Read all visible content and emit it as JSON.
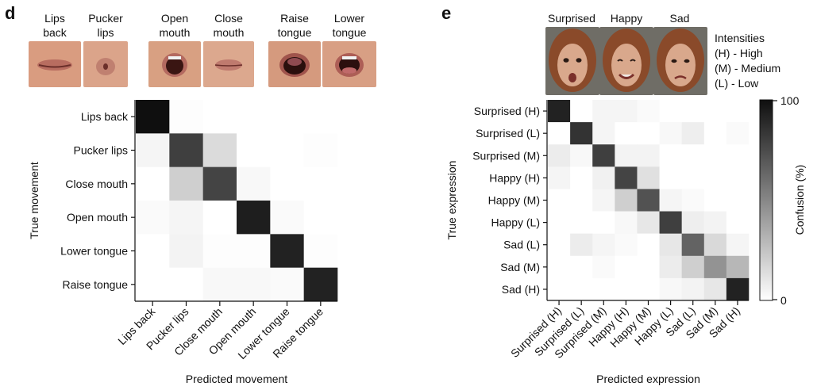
{
  "panel_d": {
    "letter": "d",
    "photo_labels": [
      {
        "line1": "Lips",
        "line2": "back"
      },
      {
        "line1": "Pucker",
        "line2": "lips"
      },
      {
        "line1": "Open",
        "line2": "mouth"
      },
      {
        "line1": "Close",
        "line2": "mouth"
      },
      {
        "line1": "Raise",
        "line2": "tongue"
      },
      {
        "line1": "Lower",
        "line2": "tongue"
      }
    ]
  },
  "panel_e": {
    "letter": "e",
    "photo_labels": [
      "Surprised",
      "Happy",
      "Sad"
    ],
    "intensities_title": "Intensities",
    "intensities": [
      "(H) - High",
      "(M) - Medium",
      "(L) - Low"
    ]
  },
  "chart_data": [
    {
      "type": "heatmap",
      "title": "",
      "xlabel": "Predicted movement",
      "ylabel": "True movement",
      "rows": [
        "Lips back",
        "Pucker lips",
        "Close mouth",
        "Open mouth",
        "Lower tongue",
        "Raise tongue"
      ],
      "columns": [
        "Lips back",
        "Pucker lips",
        "Close mouth",
        "Open mouth",
        "Lower tongue",
        "Raise tongue"
      ],
      "values": [
        [
          100,
          1,
          0,
          0,
          0,
          0
        ],
        [
          4,
          80,
          15,
          0,
          0,
          1
        ],
        [
          0,
          20,
          78,
          3,
          0,
          0
        ],
        [
          2,
          4,
          0,
          94,
          2,
          0
        ],
        [
          0,
          5,
          1,
          1,
          92,
          1
        ],
        [
          0,
          0,
          3,
          3,
          2,
          92
        ]
      ],
      "scale": [
        0,
        100
      ]
    },
    {
      "type": "heatmap",
      "title": "",
      "xlabel": "Predicted expression",
      "ylabel": "True expression",
      "rows": [
        "Surprised (H)",
        "Surprised (L)",
        "Surprised (M)",
        "Happy (H)",
        "Happy (M)",
        "Happy (L)",
        "Sad (L)",
        "Sad (M)",
        "Sad (H)"
      ],
      "columns": [
        "Surprised (H)",
        "Surprised (L)",
        "Surprised (M)",
        "Happy (H)",
        "Happy (M)",
        "Happy (L)",
        "Sad (L)",
        "Sad (M)",
        "Sad (H)"
      ],
      "values": [
        [
          92,
          0,
          4,
          4,
          2,
          0,
          0,
          0,
          0
        ],
        [
          0,
          85,
          4,
          0,
          0,
          3,
          7,
          0,
          2
        ],
        [
          8,
          3,
          80,
          5,
          5,
          0,
          0,
          0,
          0
        ],
        [
          4,
          0,
          6,
          78,
          13,
          0,
          0,
          0,
          0
        ],
        [
          0,
          0,
          4,
          20,
          72,
          4,
          2,
          0,
          0
        ],
        [
          0,
          0,
          0,
          3,
          10,
          80,
          7,
          5,
          0
        ],
        [
          0,
          8,
          4,
          2,
          0,
          10,
          65,
          16,
          4
        ],
        [
          0,
          0,
          2,
          0,
          0,
          8,
          20,
          45,
          30
        ],
        [
          0,
          0,
          0,
          0,
          0,
          3,
          5,
          10,
          92
        ]
      ],
      "scale": [
        0,
        100
      ],
      "colorbar": {
        "label": "Confusion (%)",
        "max_label": "100",
        "min_label": "0"
      }
    }
  ]
}
